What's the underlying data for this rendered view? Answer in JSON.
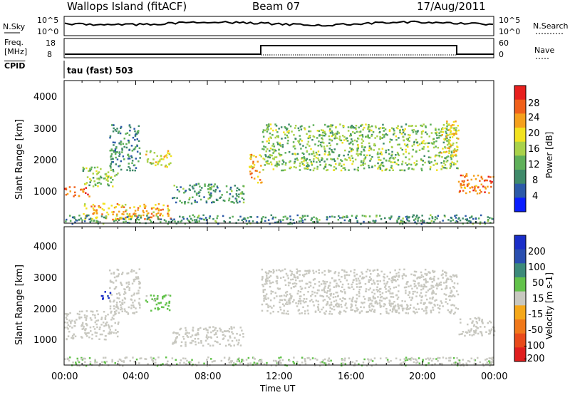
{
  "header": {
    "title": "Wallops Island (fitACF)",
    "beam": "Beam 07",
    "date": "17/Aug/2011"
  },
  "top_panels": {
    "nsky_label": "N.Sky",
    "nsky_tick_top": "10^5",
    "nsky_tick_bottom": "10^0",
    "nsearch_label": "N.Search",
    "nsearch_tick_top": "10^5",
    "nsearch_tick_bottom": "10^0",
    "freq_label": "Freq.",
    "freq_unit": "[MHz]",
    "freq_tick_top": "18",
    "freq_tick_bottom": "8",
    "nave_label": "Nave",
    "nave_tick_top": "60",
    "nave_tick_bottom": "0",
    "cpid_label": "CPID",
    "cpid_value": "tau (fast) 503"
  },
  "colors": {
    "power_scale": [
      "#0a1eff",
      "#2c5aa8",
      "#3f8a6a",
      "#5fb05a",
      "#a9d24a",
      "#f2e21f",
      "#f5a01c",
      "#f0601a",
      "#e8201e"
    ],
    "velocity_scale": [
      "#1a2ec8",
      "#2a4fb0",
      "#3c8a7a",
      "#62c24a",
      "#c8c8c0",
      "#f5a81a",
      "#f0781a",
      "#e84a1a",
      "#e01e1e"
    ]
  },
  "chart_data": [
    {
      "type": "heatmap",
      "title": "",
      "xlabel": "",
      "ylabel": "Slant Range [km]",
      "x_ticks": [
        "00:00",
        "04:00",
        "08:00",
        "12:00",
        "16:00",
        "20:00",
        "00:00"
      ],
      "y_ticks": [
        "1000",
        "2000",
        "3000",
        "4000"
      ],
      "ylim": [
        180,
        4500
      ],
      "colorbar_label": "Power [dB]",
      "colorbar_ticks": [
        "4",
        "8",
        "12",
        "16",
        "20",
        "24",
        "28"
      ],
      "features": [
        {
          "hours": [
            0.0,
            1.4
          ],
          "range_km": [
            1000,
            1300
          ],
          "value": 26
        },
        {
          "hours": [
            1.0,
            3.0
          ],
          "range_km": [
            1300,
            1900
          ],
          "value": 14
        },
        {
          "hours": [
            2.5,
            4.2
          ],
          "range_km": [
            1800,
            3200
          ],
          "value": 9
        },
        {
          "hours": [
            4.5,
            6.0
          ],
          "range_km": [
            1900,
            2400
          ],
          "value": 18
        },
        {
          "hours": [
            1.0,
            6.0
          ],
          "range_km": [
            300,
            800
          ],
          "value": 22
        },
        {
          "hours": [
            6.0,
            10.0
          ],
          "range_km": [
            800,
            1400
          ],
          "value": 10
        },
        {
          "hours": [
            10.3,
            11.0
          ],
          "range_km": [
            1400,
            2300
          ],
          "value": 22
        },
        {
          "hours": [
            11.0,
            22.0
          ],
          "range_km": [
            1800,
            3200
          ],
          "value": 14
        },
        {
          "hours": [
            21.0,
            22.0
          ],
          "range_km": [
            2200,
            3300
          ],
          "value": 20
        },
        {
          "hours": [
            22.0,
            24.0
          ],
          "range_km": [
            1100,
            1700
          ],
          "value": 26
        },
        {
          "hours": [
            0.0,
            24.0
          ],
          "range_km": [
            180,
            450
          ],
          "value": 10
        }
      ]
    },
    {
      "type": "heatmap",
      "title": "",
      "xlabel": "Time UT",
      "ylabel": "Slant Range [km]",
      "x_ticks": [
        "00:00",
        "04:00",
        "08:00",
        "12:00",
        "16:00",
        "20:00",
        "00:00"
      ],
      "y_ticks": [
        "1000",
        "2000",
        "3000",
        "4000"
      ],
      "ylim": [
        180,
        4500
      ],
      "colorbar_label": "Velocity [m s-1]",
      "colorbar_ticks": [
        "200",
        "100",
        "50",
        "15",
        "-15",
        "-50",
        "-100",
        "-200"
      ],
      "features": [
        {
          "hours": [
            0.0,
            3.0
          ],
          "range_km": [
            1000,
            1900
          ],
          "value": 0
        },
        {
          "hours": [
            2.5,
            4.2
          ],
          "range_km": [
            1800,
            3200
          ],
          "value": 0
        },
        {
          "hours": [
            2.0,
            2.6
          ],
          "range_km": [
            2250,
            2500
          ],
          "value": 200
        },
        {
          "hours": [
            4.5,
            6.0
          ],
          "range_km": [
            1900,
            2400
          ],
          "value": 40
        },
        {
          "hours": [
            6.0,
            10.0
          ],
          "range_km": [
            800,
            1400
          ],
          "value": 0
        },
        {
          "hours": [
            11.0,
            22.0
          ],
          "range_km": [
            1800,
            3200
          ],
          "value": 0
        },
        {
          "hours": [
            22.0,
            24.0
          ],
          "range_km": [
            1100,
            1700
          ],
          "value": 0
        },
        {
          "hours": [
            0.0,
            24.0
          ],
          "range_km": [
            180,
            450
          ],
          "value": 20
        }
      ]
    }
  ]
}
